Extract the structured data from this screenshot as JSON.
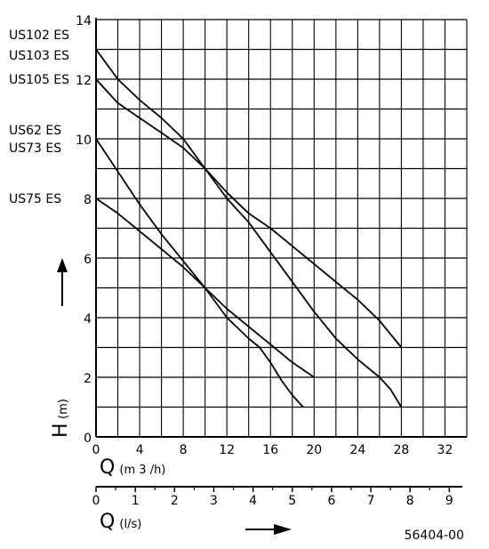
{
  "chart_data": {
    "type": "line",
    "y_axis": {
      "label_main": "H",
      "label_unit": "(m)",
      "range": [
        0,
        14
      ],
      "ticks": [
        0,
        2,
        4,
        6,
        8,
        10,
        12,
        14
      ],
      "grid_step": 1
    },
    "x_axis": {
      "label_main": "Q",
      "label_unit": "(m 3 /h)",
      "range": [
        0,
        34
      ],
      "ticks": [
        0,
        4,
        8,
        12,
        16,
        20,
        24,
        28,
        32
      ],
      "grid_step": 2
    },
    "x2_axis": {
      "label_main": "Q",
      "label_unit": "(l/s)",
      "ticks": [
        0,
        1,
        2,
        3,
        4,
        5,
        6,
        7,
        8,
        9
      ]
    },
    "grid": true,
    "legend_labels": [
      {
        "text": "US102 ES",
        "h": 13.5
      },
      {
        "text": "US103 ES",
        "h": 12.8
      },
      {
        "text": "US105 ES",
        "h": 12.0
      },
      {
        "text": "US62 ES",
        "h": 10.3
      },
      {
        "text": "US73 ES",
        "h": 9.7
      },
      {
        "text": "US75 ES",
        "h": 8.0
      }
    ],
    "series": [
      {
        "points": [
          [
            0,
            13
          ],
          [
            2,
            12
          ],
          [
            4,
            11.3
          ],
          [
            6,
            10.7
          ],
          [
            8,
            10
          ],
          [
            9,
            9.5
          ],
          [
            10,
            9
          ],
          [
            12,
            8
          ],
          [
            14,
            7.2
          ],
          [
            16,
            6.2
          ],
          [
            18,
            5.2
          ],
          [
            20,
            4.2
          ],
          [
            22,
            3.3
          ],
          [
            24,
            2.6
          ],
          [
            26,
            2
          ],
          [
            27,
            1.6
          ],
          [
            28,
            1
          ]
        ]
      },
      {
        "points": [
          [
            0,
            12
          ],
          [
            2,
            11.2
          ],
          [
            4,
            10.7
          ],
          [
            6,
            10.2
          ],
          [
            8,
            9.7
          ],
          [
            10,
            9
          ],
          [
            12,
            8.2
          ],
          [
            14,
            7.5
          ],
          [
            16,
            7
          ],
          [
            18,
            6.4
          ],
          [
            20,
            5.8
          ],
          [
            22,
            5.2
          ],
          [
            24,
            4.6
          ],
          [
            26,
            3.9
          ],
          [
            28,
            3
          ]
        ]
      },
      {
        "points": [
          [
            0,
            10
          ],
          [
            2,
            8.9
          ],
          [
            4,
            7.8
          ],
          [
            6,
            6.8
          ],
          [
            8,
            5.9
          ],
          [
            10,
            5
          ],
          [
            12,
            4
          ],
          [
            14,
            3.3
          ],
          [
            15,
            3
          ],
          [
            16,
            2.5
          ],
          [
            17,
            1.9
          ],
          [
            18,
            1.4
          ],
          [
            19,
            1
          ]
        ]
      },
      {
        "points": [
          [
            0,
            8
          ],
          [
            2,
            7.5
          ],
          [
            4,
            6.9
          ],
          [
            6,
            6.3
          ],
          [
            8,
            5.7
          ],
          [
            10,
            5
          ],
          [
            12,
            4.3
          ],
          [
            14,
            3.7
          ],
          [
            16,
            3.1
          ],
          [
            18,
            2.5
          ],
          [
            20,
            2
          ]
        ]
      }
    ]
  },
  "footer": {
    "code": "56404-00"
  }
}
